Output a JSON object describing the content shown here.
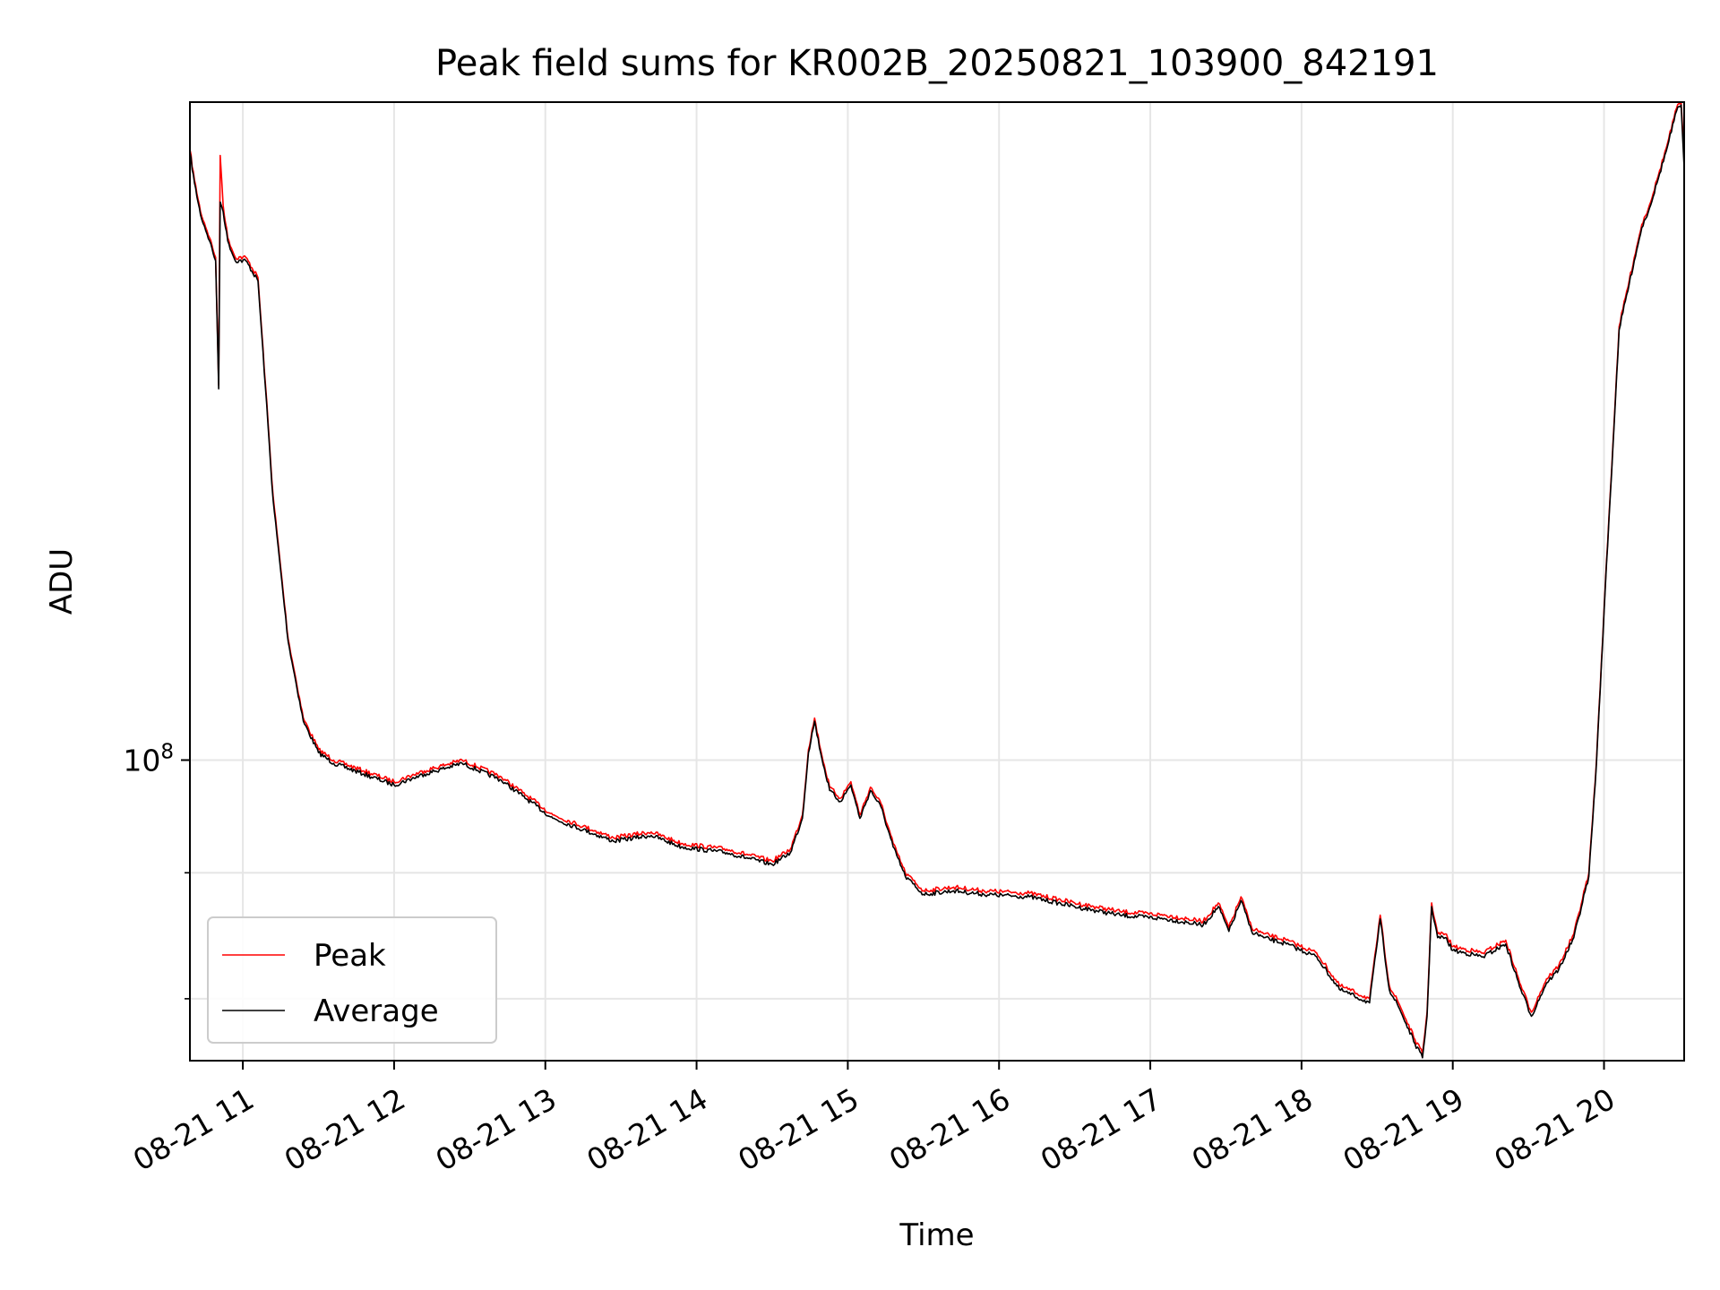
{
  "chart_data": {
    "type": "line",
    "title": "Peak field sums for KR002B_20250821_103900_842191",
    "xlabel": "Time",
    "ylabel": "ADU",
    "yscale": "log",
    "x_unit": "hour",
    "xlim": [
      10.65,
      20.53
    ],
    "ylim": [
      75500000.0,
      185000000.0
    ],
    "x_ticks": [
      {
        "value": 11,
        "label": "08-21 11"
      },
      {
        "value": 12,
        "label": "08-21 12"
      },
      {
        "value": 13,
        "label": "08-21 13"
      },
      {
        "value": 14,
        "label": "08-21 14"
      },
      {
        "value": 15,
        "label": "08-21 15"
      },
      {
        "value": 16,
        "label": "08-21 16"
      },
      {
        "value": 17,
        "label": "08-21 17"
      },
      {
        "value": 18,
        "label": "08-21 18"
      },
      {
        "value": 19,
        "label": "08-21 19"
      },
      {
        "value": 20,
        "label": "08-21 20"
      }
    ],
    "y_major_ticks": [
      {
        "value": 100000000,
        "base": "10",
        "exp": "8"
      }
    ],
    "y_minor_ticks": [
      90000000,
      80000000
    ],
    "grid": true,
    "legend_position": "lower-left",
    "colors": {
      "peak": "#ff0000",
      "average": "#000000",
      "grid": "#e6e6e6"
    },
    "series": [
      {
        "name": "Peak",
        "x": [
          10.65,
          10.68,
          10.72,
          10.78,
          10.82,
          10.84,
          10.85,
          10.87,
          10.9,
          10.95,
          11.02,
          11.1,
          11.15,
          11.2,
          11.3,
          11.4,
          11.5,
          11.6,
          11.8,
          12.0,
          12.2,
          12.45,
          12.7,
          12.85,
          13.05,
          13.25,
          13.45,
          13.7,
          13.9,
          14.2,
          14.5,
          14.62,
          14.7,
          14.74,
          14.78,
          14.82,
          14.88,
          14.95,
          15.02,
          15.08,
          15.15,
          15.22,
          15.3,
          15.38,
          15.5,
          15.7,
          15.9,
          16.2,
          16.5,
          16.8,
          17.1,
          17.35,
          17.45,
          17.52,
          17.6,
          17.67,
          17.75,
          17.9,
          18.1,
          18.25,
          18.35,
          18.45,
          18.52,
          18.58,
          18.65,
          18.75,
          18.8,
          18.83,
          18.86,
          18.9,
          18.95,
          19.0,
          19.2,
          19.35,
          19.45,
          19.52,
          19.58,
          19.62,
          19.7,
          19.8,
          19.9,
          19.95,
          20.0,
          20.1,
          20.2,
          20.25,
          20.3,
          20.35,
          20.42,
          20.48,
          20.51,
          20.53
        ],
        "y": [
          177000000,
          172000000,
          167000000,
          163000000,
          160000000,
          142000000,
          176000000,
          168000000,
          163000000,
          160000000,
          160000000,
          157000000,
          142000000,
          128000000,
          112000000,
          104000000,
          101000000,
          100000000,
          99000000,
          98000000,
          99000000,
          100000000,
          98500000,
          97000000,
          95000000,
          94000000,
          93000000,
          93500000,
          92500000,
          92000000,
          91000000,
          92000000,
          95000000,
          101000000,
          104000000,
          101000000,
          97500000,
          96500000,
          98000000,
          95000000,
          97500000,
          96000000,
          92500000,
          90000000,
          88500000,
          88800000,
          88500000,
          88300000,
          87500000,
          86800000,
          86500000,
          86000000,
          87500000,
          85500000,
          88000000,
          85500000,
          85000000,
          84500000,
          83500000,
          81000000,
          80500000,
          80000000,
          86500000,
          81000000,
          79500000,
          77000000,
          76000000,
          79000000,
          87500000,
          85000000,
          85000000,
          84000000,
          83500000,
          84500000,
          81000000,
          79000000,
          80500000,
          81500000,
          82500000,
          85000000,
          90000000,
          100000000,
          115000000,
          150000000,
          160000000,
          165000000,
          168000000,
          172000000,
          178000000,
          184000000,
          185000000,
          176000000
        ]
      },
      {
        "name": "Average",
        "x": [
          10.65,
          10.68,
          10.72,
          10.78,
          10.82,
          10.84,
          10.85,
          10.87,
          10.9,
          10.95,
          11.02,
          11.1,
          11.15,
          11.2,
          11.3,
          11.4,
          11.5,
          11.6,
          11.8,
          12.0,
          12.2,
          12.45,
          12.7,
          12.85,
          13.05,
          13.25,
          13.45,
          13.7,
          13.9,
          14.2,
          14.5,
          14.62,
          14.7,
          14.74,
          14.78,
          14.82,
          14.88,
          14.95,
          15.02,
          15.08,
          15.15,
          15.22,
          15.3,
          15.38,
          15.5,
          15.7,
          15.9,
          16.2,
          16.5,
          16.8,
          17.1,
          17.35,
          17.45,
          17.52,
          17.6,
          17.67,
          17.75,
          17.9,
          18.1,
          18.25,
          18.35,
          18.45,
          18.52,
          18.58,
          18.65,
          18.75,
          18.8,
          18.83,
          18.86,
          18.9,
          18.95,
          19.0,
          19.2,
          19.35,
          19.45,
          19.52,
          19.58,
          19.62,
          19.7,
          19.8,
          19.9,
          19.95,
          20.0,
          20.1,
          20.2,
          20.25,
          20.3,
          20.35,
          20.42,
          20.48,
          20.51,
          20.53
        ],
        "y": [
          176500000,
          171500000,
          166500000,
          162500000,
          159500000,
          141500000,
          168500000,
          167000000,
          162500000,
          159500000,
          159500000,
          156500000,
          141500000,
          127500000,
          111700000,
          103700000,
          100700000,
          99700000,
          98700000,
          97700000,
          98700000,
          99700000,
          98200000,
          96700000,
          94700000,
          93700000,
          92700000,
          93200000,
          92200000,
          91700000,
          90700000,
          91700000,
          94700000,
          100700000,
          103700000,
          100700000,
          97200000,
          96200000,
          97700000,
          94700000,
          97200000,
          95700000,
          92200000,
          89700000,
          88200000,
          88500000,
          88200000,
          88000000,
          87200000,
          86500000,
          86200000,
          85700000,
          87200000,
          85200000,
          87700000,
          85200000,
          84700000,
          84200000,
          83200000,
          80700000,
          80200000,
          79700000,
          86200000,
          80700000,
          79200000,
          76700000,
          75700000,
          78700000,
          87200000,
          84700000,
          84700000,
          83700000,
          83200000,
          84200000,
          80700000,
          78700000,
          80200000,
          81200000,
          82200000,
          84700000,
          89700000,
          99700000,
          114700000,
          149500000,
          159500000,
          164500000,
          167500000,
          171500000,
          177500000,
          183500000,
          184500000,
          174000000
        ]
      }
    ]
  }
}
